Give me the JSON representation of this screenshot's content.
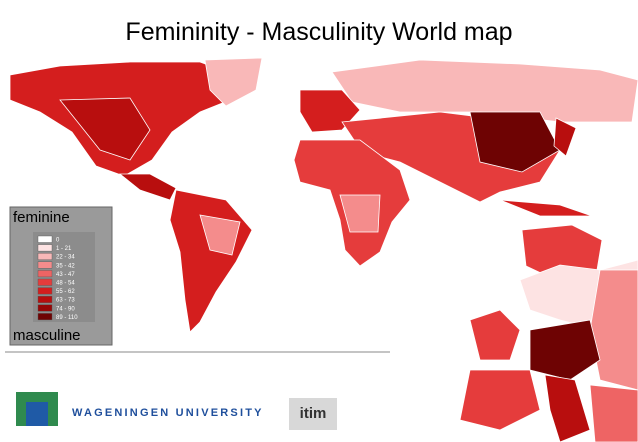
{
  "header": {
    "title": "Femininity - Masculinity World map"
  },
  "legend": {
    "top_label": "feminine",
    "bottom_label": "masculine",
    "items": [
      {
        "label": "0",
        "color": "#ffffff"
      },
      {
        "label": "1 - 21",
        "color": "#fde3e3"
      },
      {
        "label": "22 - 34",
        "color": "#f9b8b8"
      },
      {
        "label": "35 - 42",
        "color": "#f48c8c"
      },
      {
        "label": "43 - 47",
        "color": "#ee6464"
      },
      {
        "label": "48 - 54",
        "color": "#e53c3c"
      },
      {
        "label": "55 - 62",
        "color": "#d41e1e"
      },
      {
        "label": "63 - 73",
        "color": "#b80e0e"
      },
      {
        "label": "74 - 90",
        "color": "#960707"
      },
      {
        "label": "89 - 110",
        "color": "#6e0303"
      }
    ]
  },
  "footer": {
    "university": "WAGENINGEN UNIVERSITY",
    "partner": "itim"
  }
}
